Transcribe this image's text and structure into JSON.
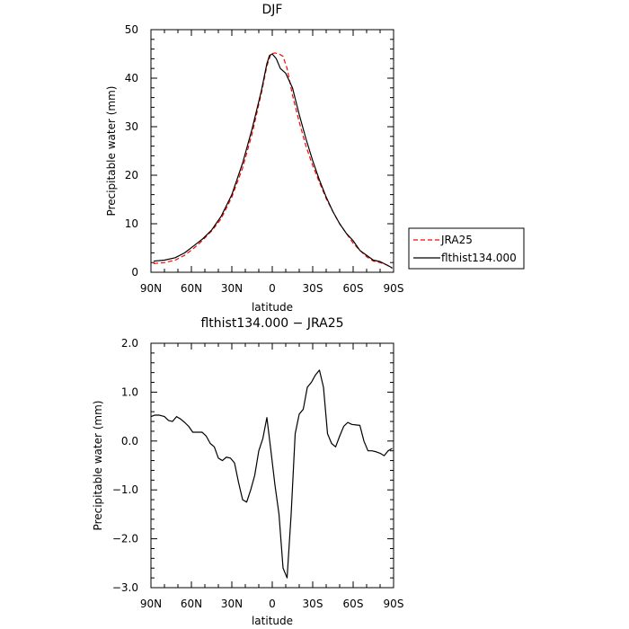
{
  "chart_data": [
    {
      "type": "line",
      "title": "DJF",
      "xlabel": "latitude",
      "ylabel": "Precipitable water (mm)",
      "x_tick_labels": [
        "90N",
        "60N",
        "30N",
        "0",
        "30S",
        "60S",
        "90S"
      ],
      "x_tick_values": [
        -90,
        -60,
        -30,
        0,
        30,
        60,
        90
      ],
      "xlim": [
        -90,
        90
      ],
      "ylim": [
        0,
        50
      ],
      "y_ticks": [
        0,
        10,
        20,
        30,
        40,
        50
      ],
      "y_tick_labels": [
        "0",
        "10",
        "20",
        "30",
        "40",
        "50"
      ],
      "grid": false,
      "legend_position": "right",
      "series": [
        {
          "name": "JRA25",
          "color": "#ff0000",
          "style": "dashed",
          "x": [
            -88,
            -80,
            -72,
            -65,
            -58,
            -52,
            -45,
            -38,
            -30,
            -22,
            -15,
            -8,
            -4,
            -1,
            2,
            5,
            8,
            11,
            15,
            20,
            25,
            30,
            35,
            40,
            45,
            50,
            55,
            60,
            65,
            70,
            75,
            80,
            85,
            89
          ],
          "y": [
            1.8,
            2.0,
            2.5,
            3.5,
            5.0,
            6.5,
            8.5,
            11.0,
            15.5,
            21.5,
            28.5,
            37.0,
            42.5,
            45.0,
            45.2,
            45.0,
            44.5,
            42.0,
            36.5,
            31.0,
            26.0,
            22.0,
            18.5,
            15.2,
            12.5,
            10.0,
            8.0,
            6.0,
            4.5,
            3.2,
            2.3,
            2.0,
            1.5,
            0.8
          ]
        },
        {
          "name": "flthist134.000",
          "color": "#000000",
          "style": "solid",
          "x": [
            -88,
            -80,
            -72,
            -65,
            -58,
            -52,
            -45,
            -38,
            -30,
            -22,
            -15,
            -8,
            -4,
            -2,
            0,
            3,
            6,
            10,
            15,
            20,
            25,
            30,
            35,
            40,
            45,
            50,
            55,
            60,
            65,
            70,
            75,
            80,
            85,
            89
          ],
          "y": [
            2.3,
            2.5,
            3.0,
            4.0,
            5.5,
            6.8,
            8.7,
            11.5,
            16.0,
            22.5,
            29.5,
            37.5,
            43.0,
            44.7,
            45.0,
            44.0,
            42.0,
            41.0,
            38.0,
            32.5,
            27.5,
            23.0,
            19.0,
            15.5,
            12.5,
            10.0,
            8.0,
            6.5,
            4.5,
            3.5,
            2.5,
            2.2,
            1.5,
            0.9
          ]
        }
      ]
    },
    {
      "type": "line",
      "title": "flthist134.000 − JRA25",
      "xlabel": "latitude",
      "ylabel": "Precipitable water (mm)",
      "x_tick_labels": [
        "90N",
        "60N",
        "30N",
        "0",
        "30S",
        "60S",
        "90S"
      ],
      "x_tick_values": [
        -90,
        -60,
        -30,
        0,
        30,
        60,
        90
      ],
      "xlim": [
        -90,
        90
      ],
      "ylim": [
        -3.0,
        2.0
      ],
      "y_ticks": [
        -3.0,
        -2.0,
        -1.0,
        0.0,
        1.0,
        2.0
      ],
      "y_tick_labels": [
        "−3.0",
        "−2.0",
        "−1.0",
        "0.0",
        "1.0",
        "2.0"
      ],
      "grid": false,
      "series": [
        {
          "color": "#000000",
          "style": "solid",
          "x": [
            -90,
            -87,
            -84,
            -80,
            -77,
            -74,
            -71,
            -68,
            -65,
            -62,
            -59,
            -55,
            -52,
            -49,
            -46,
            -43,
            -40,
            -37,
            -34,
            -31,
            -28,
            -25,
            -22,
            -19,
            -16,
            -13,
            -10,
            -7,
            -4,
            -1,
            2,
            5,
            8,
            11,
            14,
            17,
            20,
            23,
            26,
            29,
            32,
            35,
            38,
            41,
            44,
            47,
            50,
            53,
            56,
            59,
            62,
            65,
            68,
            71,
            74,
            77,
            80,
            83,
            86,
            89
          ],
          "y": [
            0.5,
            0.53,
            0.53,
            0.5,
            0.42,
            0.4,
            0.5,
            0.45,
            0.38,
            0.3,
            0.18,
            0.18,
            0.18,
            0.1,
            -0.05,
            -0.12,
            -0.35,
            -0.4,
            -0.33,
            -0.35,
            -0.45,
            -0.85,
            -1.2,
            -1.25,
            -1.0,
            -0.7,
            -0.2,
            0.05,
            0.48,
            -0.2,
            -0.9,
            -1.5,
            -2.6,
            -2.8,
            -1.5,
            0.15,
            0.55,
            0.65,
            1.1,
            1.2,
            1.35,
            1.45,
            1.1,
            0.15,
            -0.05,
            -0.12,
            0.1,
            0.3,
            0.38,
            0.34,
            0.33,
            0.32,
            0.0,
            -0.2,
            -0.2,
            -0.22,
            -0.25,
            -0.3,
            -0.2,
            -0.15
          ]
        }
      ]
    }
  ],
  "legend": {
    "items": [
      {
        "label": "JRA25",
        "color": "#ff0000",
        "style": "dashed"
      },
      {
        "label": "flthist134.000",
        "color": "#000000",
        "style": "solid"
      }
    ]
  }
}
